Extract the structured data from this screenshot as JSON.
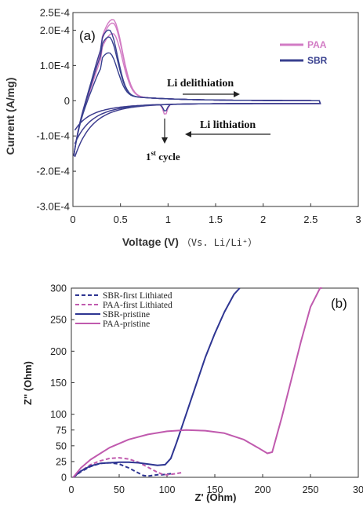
{
  "colors": {
    "sbr": "#2e3592",
    "paa": "#c05aae",
    "sbr_cv": "#38408f",
    "paa_cv": "#d27bc4"
  },
  "chart_data": [
    {
      "panel": "(a)",
      "type": "line",
      "xlabel": "Voltage (V)",
      "xlabel_suffix": "（Vs. Li/Li⁺）",
      "ylabel": "Current (A/mg)",
      "xlim": [
        0,
        3
      ],
      "ylim": [
        -0.0003,
        0.00025
      ],
      "x_ticks": [
        "0",
        "0.5",
        "1",
        "1.5",
        "2",
        "2.5",
        "3"
      ],
      "y_ticks": [
        "2.5E-4",
        "2.0E-4",
        "1.0E-4",
        "0",
        "-1.0E-4",
        "-2.0E-4",
        "-3.0E-4"
      ],
      "legend": [
        "PAA",
        "SBR"
      ],
      "legend_position": "top-right",
      "annotations": {
        "delithiation": "Li delithiation",
        "lithiation": "Li  lithiation",
        "first_cycle_base": "1",
        "first_cycle_sup": "st",
        "first_cycle_rest": " cycle"
      },
      "series": [
        {
          "name": "PAA",
          "peak_voltage": 0.42,
          "peak_currents": [
            0.000215,
            0.000205,
            0.000175
          ],
          "reduction_dip_voltage": 0.97,
          "reduction_dip_current": -4e-05
        },
        {
          "name": "SBR",
          "peak_voltage": 0.38,
          "peak_currents": [
            0.000185,
            0.000165,
            0.00012
          ],
          "reduction_dip_voltage": 0.97,
          "reduction_dip_current": -3e-05
        }
      ]
    },
    {
      "panel": "(b)",
      "type": "line",
      "xlabel": "Z' (Ohm)",
      "ylabel": "Z'' (Ohm)",
      "xlim": [
        0,
        300
      ],
      "ylim": [
        0,
        300
      ],
      "x_ticks": [
        "0",
        "50",
        "100",
        "150",
        "200",
        "250",
        "30"
      ],
      "y_ticks": [
        "0",
        "25",
        "50",
        "75",
        "100",
        "150",
        "200",
        "250",
        "300"
      ],
      "legend_position": "top-left",
      "series": [
        {
          "name": "SBR-first Lithiated",
          "style": "dashed",
          "x": [
            2,
            10,
            20,
            30,
            40,
            50,
            60,
            70,
            75,
            80,
            85,
            90,
            95,
            100,
            105
          ],
          "y": [
            0,
            9,
            17,
            22,
            23,
            21,
            15,
            7,
            3,
            2,
            3,
            4,
            4,
            5,
            6
          ]
        },
        {
          "name": "PAA-first Lithiated",
          "style": "dashed",
          "x": [
            2,
            10,
            20,
            30,
            40,
            50,
            60,
            70,
            80,
            90,
            95,
            100,
            105,
            110,
            117
          ],
          "y": [
            0,
            10,
            20,
            26,
            30,
            31,
            29,
            24,
            16,
            8,
            5,
            4,
            5,
            6,
            8
          ]
        },
        {
          "name": "SBR-pristine",
          "style": "solid",
          "x": [
            2,
            10,
            20,
            30,
            40,
            50,
            60,
            70,
            80,
            90,
            98,
            104,
            110,
            120,
            130,
            140,
            150,
            160,
            170,
            176
          ],
          "y": [
            0,
            10,
            18,
            22,
            23,
            24,
            24,
            23,
            21,
            19,
            20,
            30,
            55,
            100,
            145,
            190,
            228,
            262,
            290,
            300
          ]
        },
        {
          "name": "PAA-pristine",
          "style": "solid",
          "x": [
            2,
            10,
            20,
            40,
            60,
            80,
            100,
            120,
            140,
            160,
            180,
            195,
            205,
            210,
            220,
            230,
            240,
            250,
            260,
            262
          ],
          "y": [
            0,
            15,
            28,
            47,
            60,
            68,
            73,
            75,
            74,
            70,
            60,
            47,
            38,
            40,
            95,
            155,
            215,
            270,
            300,
            300
          ]
        }
      ]
    }
  ]
}
